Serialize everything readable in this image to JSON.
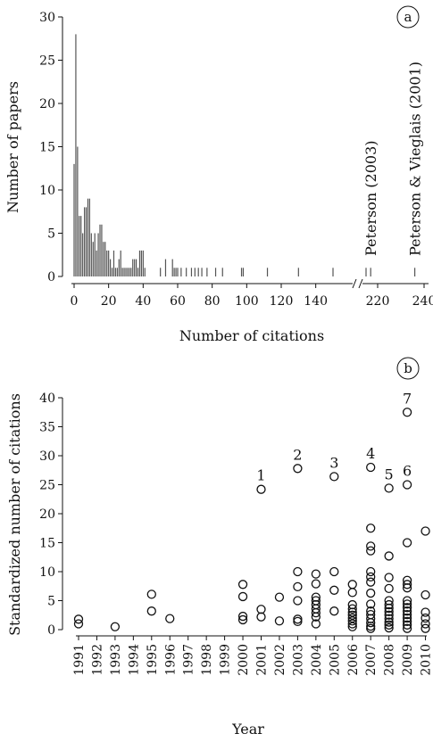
{
  "chart_data": [
    {
      "type": "bar",
      "panel_label": "a",
      "xlabel": "Number of citations",
      "ylabel": "Number of papers",
      "ylim": [
        0,
        30
      ],
      "yticks": [
        0,
        5,
        10,
        15,
        20,
        25,
        30
      ],
      "xticks": [
        "0",
        "20",
        "40",
        "60",
        "80",
        "100",
        "120",
        "140",
        "220",
        "240"
      ],
      "axis_break": "between 140 and 220",
      "x": [
        0,
        1,
        2,
        3,
        4,
        5,
        6,
        7,
        8,
        9,
        10,
        11,
        12,
        13,
        14,
        15,
        16,
        17,
        18,
        19,
        20,
        21,
        22,
        23,
        24,
        25,
        26,
        27,
        28,
        29,
        30,
        31,
        32,
        33,
        34,
        35,
        36,
        37,
        38,
        39,
        40,
        41,
        50,
        53,
        57,
        58,
        59,
        60,
        62,
        65,
        68,
        70,
        72,
        74,
        77,
        82,
        86,
        97,
        98,
        112,
        130,
        150,
        215,
        217,
        236
      ],
      "values": [
        13,
        28,
        15,
        7,
        7,
        5,
        8,
        8,
        9,
        9,
        5,
        4,
        5,
        3,
        5,
        6,
        6,
        4,
        4,
        3,
        3,
        2,
        1,
        3,
        1,
        1,
        2,
        3,
        1,
        1,
        1,
        1,
        1,
        1,
        2,
        2,
        2,
        1,
        3,
        3,
        3,
        1,
        1,
        2,
        2,
        1,
        1,
        1,
        1,
        1,
        1,
        1,
        1,
        1,
        1,
        1,
        1,
        1,
        1,
        1,
        1,
        1,
        1,
        1,
        1
      ],
      "annotations": [
        {
          "text": "Peterson (2003)",
          "x": 217
        },
        {
          "text": "Peterson & Vieglais (2001)",
          "x": 236
        }
      ]
    },
    {
      "type": "scatter",
      "panel_label": "b",
      "xlabel": "Year",
      "ylabel": "Standardized number of citations",
      "ylim": [
        0,
        40
      ],
      "yticks": [
        0,
        5,
        10,
        15,
        20,
        25,
        30,
        35,
        40
      ],
      "categories": [
        "1991",
        "1992",
        "1993",
        "1994",
        "1995",
        "1996",
        "1997",
        "1998",
        "1999",
        "2000",
        "2001",
        "2002",
        "2003",
        "2004",
        "2005",
        "2006",
        "2007",
        "2008",
        "2009",
        "2010"
      ],
      "points": [
        {
          "x": "1991",
          "y": 1.8
        },
        {
          "x": "1991",
          "y": 1.0
        },
        {
          "x": "1993",
          "y": 0.5
        },
        {
          "x": "1995",
          "y": 6.1
        },
        {
          "x": "1995",
          "y": 3.2
        },
        {
          "x": "1996",
          "y": 1.9
        },
        {
          "x": "2000",
          "y": 7.8
        },
        {
          "x": "2000",
          "y": 5.7
        },
        {
          "x": "2000",
          "y": 2.3
        },
        {
          "x": "2000",
          "y": 1.7
        },
        {
          "x": "2001",
          "y": 24.2
        },
        {
          "x": "2001",
          "y": 3.5
        },
        {
          "x": "2001",
          "y": 2.2
        },
        {
          "x": "2002",
          "y": 5.6
        },
        {
          "x": "2002",
          "y": 1.5
        },
        {
          "x": "2003",
          "y": 27.8
        },
        {
          "x": "2003",
          "y": 10.0
        },
        {
          "x": "2003",
          "y": 7.4
        },
        {
          "x": "2003",
          "y": 5.0
        },
        {
          "x": "2003",
          "y": 1.8
        },
        {
          "x": "2003",
          "y": 1.4
        },
        {
          "x": "2004",
          "y": 9.6
        },
        {
          "x": "2004",
          "y": 7.9
        },
        {
          "x": "2004",
          "y": 5.6
        },
        {
          "x": "2004",
          "y": 5.0
        },
        {
          "x": "2004",
          "y": 4.3
        },
        {
          "x": "2004",
          "y": 3.6
        },
        {
          "x": "2004",
          "y": 2.9
        },
        {
          "x": "2004",
          "y": 2.2
        },
        {
          "x": "2004",
          "y": 1.0
        },
        {
          "x": "2005",
          "y": 26.4
        },
        {
          "x": "2005",
          "y": 10.0
        },
        {
          "x": "2005",
          "y": 6.8
        },
        {
          "x": "2005",
          "y": 3.2
        },
        {
          "x": "2006",
          "y": 7.8
        },
        {
          "x": "2006",
          "y": 6.4
        },
        {
          "x": "2006",
          "y": 4.3
        },
        {
          "x": "2006",
          "y": 3.6
        },
        {
          "x": "2006",
          "y": 3.0
        },
        {
          "x": "2006",
          "y": 2.5
        },
        {
          "x": "2006",
          "y": 2.0
        },
        {
          "x": "2006",
          "y": 1.5
        },
        {
          "x": "2006",
          "y": 1.0
        },
        {
          "x": "2006",
          "y": 0.5
        },
        {
          "x": "2007",
          "y": 28.0
        },
        {
          "x": "2007",
          "y": 17.5
        },
        {
          "x": "2007",
          "y": 14.4
        },
        {
          "x": "2007",
          "y": 13.6
        },
        {
          "x": "2007",
          "y": 10.0
        },
        {
          "x": "2007",
          "y": 9.1
        },
        {
          "x": "2007",
          "y": 8.2
        },
        {
          "x": "2007",
          "y": 6.3
        },
        {
          "x": "2007",
          "y": 4.4
        },
        {
          "x": "2007",
          "y": 3.2
        },
        {
          "x": "2007",
          "y": 2.6
        },
        {
          "x": "2007",
          "y": 1.9
        },
        {
          "x": "2007",
          "y": 1.2
        },
        {
          "x": "2007",
          "y": 0.6
        },
        {
          "x": "2007",
          "y": 0.2
        },
        {
          "x": "2008",
          "y": 24.4
        },
        {
          "x": "2008",
          "y": 12.7
        },
        {
          "x": "2008",
          "y": 9.0
        },
        {
          "x": "2008",
          "y": 7.1
        },
        {
          "x": "2008",
          "y": 5.0
        },
        {
          "x": "2008",
          "y": 4.3
        },
        {
          "x": "2008",
          "y": 3.7
        },
        {
          "x": "2008",
          "y": 3.1
        },
        {
          "x": "2008",
          "y": 2.5
        },
        {
          "x": "2008",
          "y": 1.9
        },
        {
          "x": "2008",
          "y": 1.3
        },
        {
          "x": "2008",
          "y": 0.8
        },
        {
          "x": "2008",
          "y": 0.3
        },
        {
          "x": "2009",
          "y": 37.5
        },
        {
          "x": "2009",
          "y": 25.0
        },
        {
          "x": "2009",
          "y": 15.0
        },
        {
          "x": "2009",
          "y": 8.5
        },
        {
          "x": "2009",
          "y": 7.8
        },
        {
          "x": "2009",
          "y": 7.2
        },
        {
          "x": "2009",
          "y": 5.0
        },
        {
          "x": "2009",
          "y": 4.4
        },
        {
          "x": "2009",
          "y": 3.8
        },
        {
          "x": "2009",
          "y": 3.2
        },
        {
          "x": "2009",
          "y": 2.6
        },
        {
          "x": "2009",
          "y": 2.0
        },
        {
          "x": "2009",
          "y": 1.4
        },
        {
          "x": "2009",
          "y": 0.8
        },
        {
          "x": "2009",
          "y": 0.2
        },
        {
          "x": "2010",
          "y": 17.0
        },
        {
          "x": "2010",
          "y": 6.0
        },
        {
          "x": "2010",
          "y": 3.0
        },
        {
          "x": "2010",
          "y": 2.0
        },
        {
          "x": "2010",
          "y": 1.0
        },
        {
          "x": "2010",
          "y": 0.2
        }
      ],
      "annotations": [
        {
          "text": "1",
          "x": "2001",
          "y": 24.2
        },
        {
          "text": "2",
          "x": "2003",
          "y": 27.8
        },
        {
          "text": "3",
          "x": "2005",
          "y": 26.4
        },
        {
          "text": "4",
          "x": "2007",
          "y": 28.0
        },
        {
          "text": "5",
          "x": "2008",
          "y": 24.4
        },
        {
          "text": "6",
          "x": "2009",
          "y": 25.0
        },
        {
          "text": "7",
          "x": "2009",
          "y": 37.5
        }
      ]
    }
  ]
}
